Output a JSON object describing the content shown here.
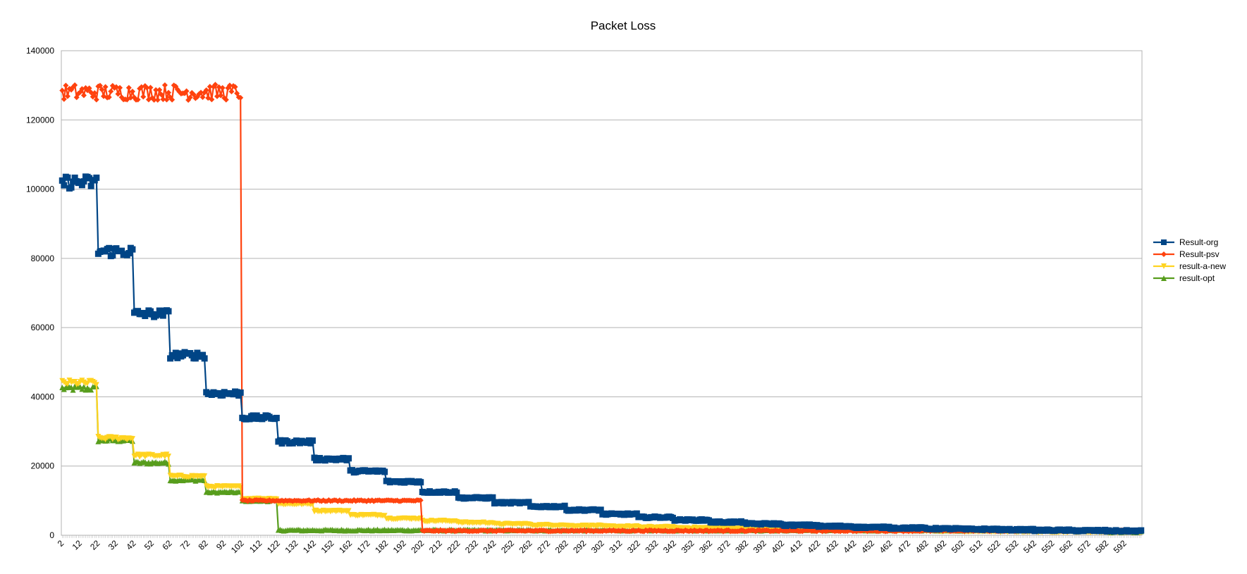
{
  "chart_data": {
    "type": "line",
    "title": "Packet Loss",
    "xlabel": "",
    "ylabel": "",
    "x_start": 2,
    "x_end": 601,
    "x_tick_labels": [
      "2",
      "12",
      "22",
      "32",
      "42",
      "52",
      "62",
      "72",
      "82",
      "92",
      "102",
      "112",
      "122",
      "132",
      "142",
      "152",
      "162",
      "172",
      "182",
      "192",
      "202",
      "212",
      "222",
      "232",
      "242",
      "252",
      "262",
      "272",
      "282",
      "292",
      "302",
      "312",
      "322",
      "332",
      "342",
      "352",
      "362",
      "372",
      "382",
      "392",
      "402",
      "412",
      "422",
      "432",
      "442",
      "452",
      "462",
      "472",
      "482",
      "492",
      "502",
      "512",
      "522",
      "532",
      "542",
      "552",
      "562",
      "572",
      "582",
      "592"
    ],
    "ylim": [
      0,
      140000
    ],
    "y_ticks": [
      0,
      20000,
      40000,
      60000,
      80000,
      100000,
      120000,
      140000
    ],
    "grid": "horizontal",
    "legend_position": "right",
    "series": [
      {
        "name": "Result-org",
        "color": "#004586",
        "marker": "square",
        "steps": [
          [
            2,
            102000
          ],
          [
            22,
            82000
          ],
          [
            42,
            64000
          ],
          [
            62,
            52000
          ],
          [
            82,
            41000
          ],
          [
            102,
            34000
          ],
          [
            122,
            27000
          ],
          [
            142,
            22000
          ],
          [
            162,
            18500
          ],
          [
            182,
            15500
          ],
          [
            202,
            12500
          ],
          [
            222,
            10800
          ],
          [
            242,
            9400
          ],
          [
            262,
            8300
          ],
          [
            282,
            7300
          ],
          [
            302,
            6100
          ],
          [
            322,
            5200
          ],
          [
            342,
            4400
          ],
          [
            362,
            3800
          ],
          [
            382,
            3300
          ],
          [
            402,
            2900
          ],
          [
            422,
            2600
          ],
          [
            442,
            2300
          ],
          [
            462,
            2100
          ],
          [
            482,
            1900
          ],
          [
            502,
            1750
          ],
          [
            522,
            1600
          ],
          [
            542,
            1450
          ],
          [
            562,
            1350
          ],
          [
            582,
            1250
          ]
        ]
      },
      {
        "name": "Result-psv",
        "color": "#ff420e",
        "marker": "diamond",
        "steps": [
          [
            2,
            128000
          ],
          [
            102,
            10000
          ],
          [
            202,
            1300
          ]
        ]
      },
      {
        "name": "result-a-new",
        "color": "#ffd320",
        "marker": "triangle-down",
        "steps": [
          [
            2,
            44000
          ],
          [
            22,
            28000
          ],
          [
            42,
            23000
          ],
          [
            62,
            17000
          ],
          [
            82,
            14000
          ],
          [
            102,
            10500
          ],
          [
            122,
            9000
          ],
          [
            142,
            7000
          ],
          [
            162,
            5800
          ],
          [
            182,
            4800
          ],
          [
            202,
            4100
          ],
          [
            222,
            3600
          ],
          [
            242,
            3200
          ],
          [
            262,
            2900
          ],
          [
            282,
            2700
          ],
          [
            302,
            2500
          ],
          [
            322,
            2300
          ],
          [
            342,
            2100
          ],
          [
            362,
            1950
          ],
          [
            382,
            1800
          ],
          [
            402,
            1650
          ],
          [
            422,
            1500
          ],
          [
            442,
            1400
          ],
          [
            462,
            1300
          ],
          [
            482,
            1200
          ],
          [
            502,
            1100
          ],
          [
            522,
            1000
          ],
          [
            542,
            950
          ],
          [
            562,
            900
          ],
          [
            582,
            850
          ]
        ]
      },
      {
        "name": "result-opt",
        "color": "#579d1c",
        "marker": "triangle-up",
        "steps": [
          [
            2,
            42500
          ],
          [
            22,
            27500
          ],
          [
            42,
            21000
          ],
          [
            62,
            16000
          ],
          [
            82,
            12500
          ],
          [
            102,
            10000
          ],
          [
            122,
            1500
          ],
          [
            582,
            1000
          ]
        ]
      }
    ]
  }
}
